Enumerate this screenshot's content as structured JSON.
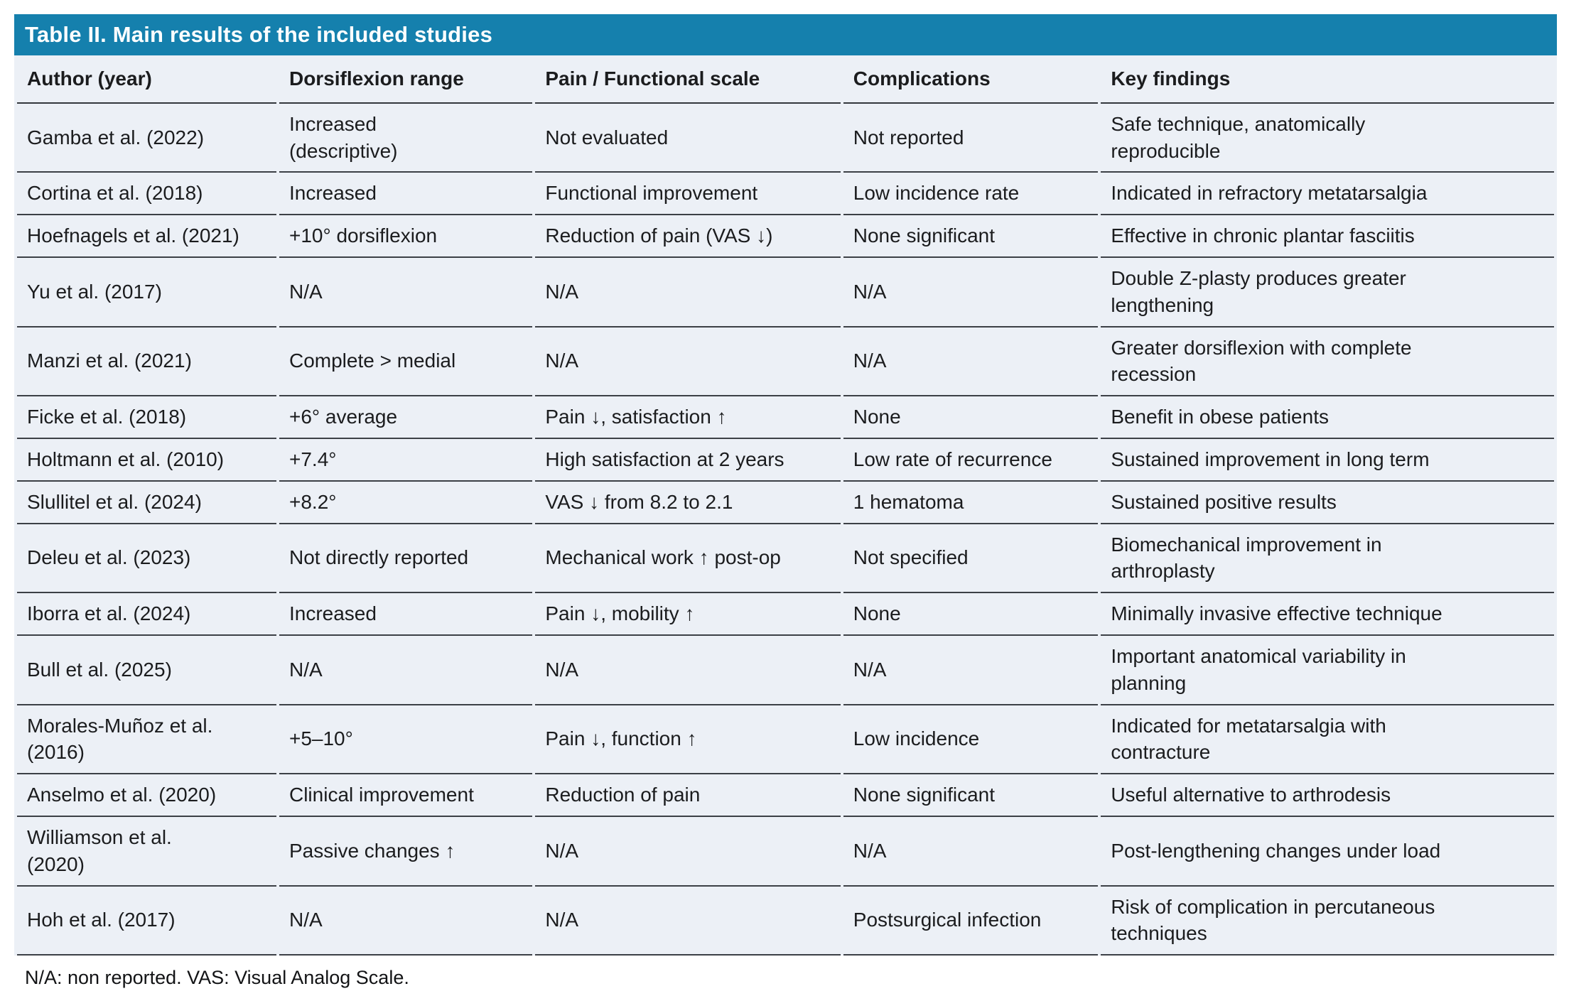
{
  "table": {
    "title": "Table II. Main results of the included studies",
    "columns": [
      "Author (year)",
      "Dorsiflexion range",
      "Pain / Functional scale",
      "Complications",
      "Key findings"
    ],
    "rows": [
      {
        "author": "Gamba et al. (2022)",
        "dorsiflexion_range": "Increased\n(descriptive)",
        "pain_functional_scale": "Not evaluated",
        "complications": "Not reported",
        "key_findings": "Safe technique, anatomically\nreproducible"
      },
      {
        "author": "Cortina et al. (2018)",
        "dorsiflexion_range": "Increased",
        "pain_functional_scale": "Functional improvement",
        "complications": "Low incidence rate",
        "key_findings": "Indicated in refractory metatarsalgia"
      },
      {
        "author": "Hoefnagels et al. (2021)",
        "dorsiflexion_range": "+10° dorsiflexion",
        "pain_functional_scale": "Reduction of pain (VAS ↓)",
        "complications": "None significant",
        "key_findings": "Effective in chronic plantar fasciitis"
      },
      {
        "author": "Yu et al. (2017)",
        "dorsiflexion_range": "N/A",
        "pain_functional_scale": "N/A",
        "complications": "N/A",
        "key_findings": "Double Z-plasty produces greater\nlengthening"
      },
      {
        "author": "Manzi et al. (2021)",
        "dorsiflexion_range": "Complete > medial",
        "pain_functional_scale": "N/A",
        "complications": "N/A",
        "key_findings": "Greater dorsiflexion with complete\nrecession"
      },
      {
        "author": "Ficke et al. (2018)",
        "dorsiflexion_range": "+6° average",
        "pain_functional_scale": "Pain ↓, satisfaction ↑",
        "complications": "None",
        "key_findings": "Benefit in obese patients"
      },
      {
        "author": "Holtmann et al. (2010)",
        "dorsiflexion_range": "+7.4°",
        "pain_functional_scale": "High satisfaction at 2 years",
        "complications": "Low rate of recurrence",
        "key_findings": "Sustained improvement in long term"
      },
      {
        "author": "Slullitel et al. (2024)",
        "dorsiflexion_range": "+8.2°",
        "pain_functional_scale": "VAS ↓ from 8.2 to 2.1",
        "complications": "1 hematoma",
        "key_findings": "Sustained positive results"
      },
      {
        "author": "Deleu et al. (2023)",
        "dorsiflexion_range": "Not directly reported",
        "pain_functional_scale": "Mechanical work ↑ post-op",
        "complications": "Not specified",
        "key_findings": "Biomechanical improvement in\narthroplasty"
      },
      {
        "author": "Iborra et al. (2024)",
        "dorsiflexion_range": "Increased",
        "pain_functional_scale": "Pain ↓, mobility ↑",
        "complications": "None",
        "key_findings": "Minimally invasive effective technique"
      },
      {
        "author": "Bull et al. (2025)",
        "dorsiflexion_range": "N/A",
        "pain_functional_scale": "N/A",
        "complications": "N/A",
        "key_findings": "Important anatomical variability in\nplanning"
      },
      {
        "author": "Morales-Muñoz et al.\n(2016)",
        "dorsiflexion_range": "+5–10°",
        "pain_functional_scale": "Pain ↓, function ↑",
        "complications": "Low incidence",
        "key_findings": "Indicated for metatarsalgia with\ncontracture"
      },
      {
        "author": "Anselmo et al. (2020)",
        "dorsiflexion_range": "Clinical improvement",
        "pain_functional_scale": "Reduction of pain",
        "complications": "None significant",
        "key_findings": "Useful alternative to arthrodesis"
      },
      {
        "author": "Williamson et al.\n(2020)",
        "dorsiflexion_range": "Passive changes ↑",
        "pain_functional_scale": "N/A",
        "complications": "N/A",
        "key_findings": "Post-lengthening changes under load"
      },
      {
        "author": "Hoh et al. (2017)",
        "dorsiflexion_range": "N/A",
        "pain_functional_scale": "N/A",
        "complications": "Postsurgical infection",
        "key_findings": "Risk of complication in percutaneous\ntechniques"
      }
    ],
    "footnote": "N/A: non reported. VAS: Visual Analog Scale."
  },
  "colors": {
    "title_bar_bg": "#1580ad",
    "title_text": "#ffffff",
    "table_bg": "#ecf0f6",
    "rule": "#3c4046",
    "body_text": "#1b1c1e",
    "page_bg": "#ffffff"
  }
}
